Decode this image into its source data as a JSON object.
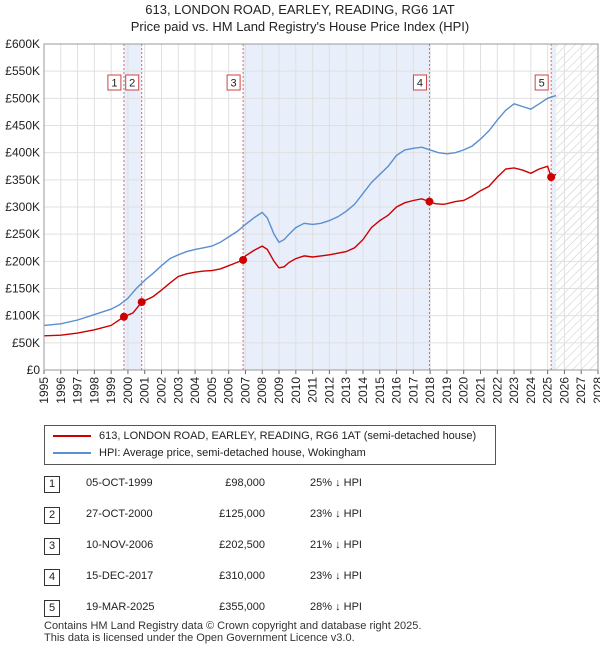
{
  "chart_data": {
    "type": "line",
    "title": "613, LONDON ROAD, EARLEY, READING, RG6 1AT",
    "subtitle": "Price paid vs. HM Land Registry's House Price Index (HPI)",
    "xlim": [
      1995,
      2028
    ],
    "ylim": [
      0,
      600000
    ],
    "x_ticks": [
      1995,
      1996,
      1997,
      1998,
      1999,
      2000,
      2001,
      2002,
      2003,
      2004,
      2005,
      2006,
      2007,
      2008,
      2009,
      2010,
      2011,
      2012,
      2013,
      2014,
      2015,
      2016,
      2017,
      2018,
      2019,
      2020,
      2021,
      2022,
      2023,
      2024,
      2025,
      2026,
      2027,
      2028
    ],
    "y_ticks": [
      {
        "value": 0,
        "label": "£0"
      },
      {
        "value": 50000,
        "label": "£50K"
      },
      {
        "value": 100000,
        "label": "£100K"
      },
      {
        "value": 150000,
        "label": "£150K"
      },
      {
        "value": 200000,
        "label": "£200K"
      },
      {
        "value": 250000,
        "label": "£250K"
      },
      {
        "value": 300000,
        "label": "£300K"
      },
      {
        "value": 350000,
        "label": "£350K"
      },
      {
        "value": 400000,
        "label": "£400K"
      },
      {
        "value": 450000,
        "label": "£450K"
      },
      {
        "value": 500000,
        "label": "£500K"
      },
      {
        "value": 550000,
        "label": "£550K"
      },
      {
        "value": 600000,
        "label": "£600K"
      }
    ],
    "shaded_periods": [
      [
        1999.76,
        2000.82
      ],
      [
        2006.86,
        2017.96
      ],
      [
        2025.21,
        2025.5
      ]
    ],
    "future_start": 2025.5,
    "series": [
      {
        "name": "613, LONDON ROAD, EARLEY, READING, RG6 1AT (semi-detached house)",
        "color": "#cc0000",
        "x": [
          1995.0,
          1996.0,
          1997.0,
          1998.0,
          1999.0,
          1999.76,
          2000.3,
          2000.82,
          2001.5,
          2002.0,
          2002.5,
          2003.0,
          2003.5,
          2004.0,
          2004.5,
          2005.0,
          2005.5,
          2006.0,
          2006.5,
          2006.86,
          2007.0,
          2007.5,
          2008.0,
          2008.3,
          2008.7,
          2009.0,
          2009.3,
          2009.6,
          2010.0,
          2010.5,
          2011.0,
          2011.5,
          2012.0,
          2012.5,
          2013.0,
          2013.5,
          2014.0,
          2014.5,
          2015.0,
          2015.5,
          2016.0,
          2016.5,
          2017.0,
          2017.5,
          2017.96,
          2018.3,
          2018.8,
          2019.0,
          2019.5,
          2020.0,
          2020.5,
          2021.0,
          2021.5,
          2022.0,
          2022.5,
          2023.0,
          2023.5,
          2024.0,
          2024.5,
          2025.0,
          2025.21,
          2025.5
        ],
        "y": [
          63000,
          64000,
          68000,
          74000,
          82000,
          98000,
          105000,
          125000,
          135000,
          147000,
          160000,
          172000,
          177000,
          180000,
          182000,
          183000,
          186000,
          192000,
          198000,
          202500,
          210000,
          220000,
          228000,
          222000,
          200000,
          188000,
          190000,
          198000,
          205000,
          210000,
          208000,
          210000,
          212000,
          215000,
          218000,
          225000,
          240000,
          262000,
          275000,
          285000,
          300000,
          308000,
          312000,
          315000,
          310000,
          306000,
          305000,
          306000,
          310000,
          312000,
          320000,
          330000,
          338000,
          355000,
          370000,
          372000,
          368000,
          362000,
          370000,
          375000,
          355000,
          360000
        ]
      },
      {
        "name": "HPI: Average price, semi-detached house, Wokingham",
        "color": "#5a8fd0",
        "x": [
          1995.0,
          1996.0,
          1997.0,
          1998.0,
          1999.0,
          1999.5,
          2000.0,
          2000.5,
          2001.0,
          2001.5,
          2002.0,
          2002.5,
          2003.0,
          2003.5,
          2004.0,
          2004.5,
          2005.0,
          2005.5,
          2006.0,
          2006.5,
          2007.0,
          2007.5,
          2008.0,
          2008.3,
          2008.7,
          2009.0,
          2009.3,
          2009.6,
          2010.0,
          2010.5,
          2011.0,
          2011.5,
          2012.0,
          2012.5,
          2013.0,
          2013.5,
          2014.0,
          2014.5,
          2015.0,
          2015.5,
          2016.0,
          2016.5,
          2017.0,
          2017.5,
          2018.0,
          2018.5,
          2019.0,
          2019.5,
          2020.0,
          2020.5,
          2021.0,
          2021.5,
          2022.0,
          2022.5,
          2023.0,
          2023.5,
          2024.0,
          2024.5,
          2025.0,
          2025.5
        ],
        "y": [
          82000,
          85000,
          92000,
          102000,
          112000,
          120000,
          132000,
          150000,
          165000,
          178000,
          192000,
          205000,
          212000,
          218000,
          222000,
          225000,
          228000,
          235000,
          245000,
          255000,
          268000,
          280000,
          290000,
          280000,
          250000,
          235000,
          240000,
          250000,
          262000,
          270000,
          268000,
          270000,
          275000,
          282000,
          292000,
          305000,
          325000,
          345000,
          360000,
          375000,
          395000,
          405000,
          408000,
          410000,
          405000,
          400000,
          398000,
          400000,
          405000,
          412000,
          425000,
          440000,
          460000,
          478000,
          490000,
          485000,
          480000,
          490000,
          500000,
          505000
        ]
      }
    ],
    "sale_markers": [
      {
        "label": "1",
        "x": 1999.76,
        "y": 98000
      },
      {
        "label": "2",
        "x": 2000.82,
        "y": 125000
      },
      {
        "label": "3",
        "x": 2006.86,
        "y": 202500
      },
      {
        "label": "4",
        "x": 2017.96,
        "y": 310000
      },
      {
        "label": "5",
        "x": 2025.21,
        "y": 355000
      }
    ]
  },
  "legend": {
    "property_label": "613, LONDON ROAD, EARLEY, READING, RG6 1AT (semi-detached house)",
    "hpi_label": "HPI: Average price, semi-detached house, Wokingham"
  },
  "sales": [
    {
      "num": "1",
      "date": "05-OCT-1999",
      "price": "£98,000",
      "hpi": "25% ↓ HPI"
    },
    {
      "num": "2",
      "date": "27-OCT-2000",
      "price": "£125,000",
      "hpi": "23% ↓ HPI"
    },
    {
      "num": "3",
      "date": "10-NOV-2006",
      "price": "£202,500",
      "hpi": "21% ↓ HPI"
    },
    {
      "num": "4",
      "date": "15-DEC-2017",
      "price": "£310,000",
      "hpi": "23% ↓ HPI"
    },
    {
      "num": "5",
      "date": "19-MAR-2025",
      "price": "£355,000",
      "hpi": "28% ↓ HPI"
    }
  ],
  "footer": {
    "line1": "Contains HM Land Registry data © Crown copyright and database right 2025.",
    "line2": "This data is licensed under the Open Government Licence v3.0."
  },
  "colors": {
    "property": "#cc0000",
    "hpi": "#5a8fd0",
    "shade": "#e8eefa"
  }
}
